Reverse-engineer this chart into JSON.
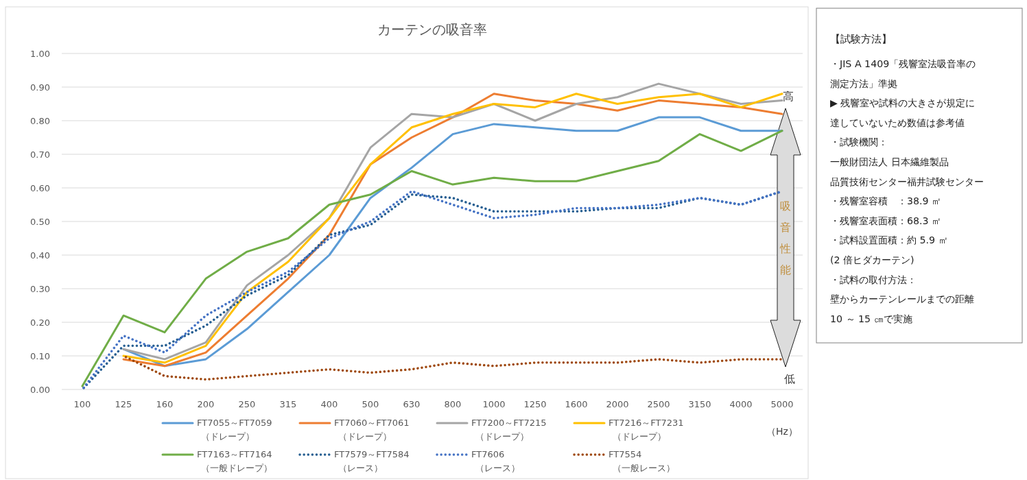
{
  "chart_data": [
    {
      "type": "line",
      "title": "カーテンの吸音率",
      "xlabel": "（Hz）",
      "categories": [
        "100",
        "125",
        "160",
        "200",
        "250",
        "315",
        "400",
        "500",
        "630",
        "800",
        "1000",
        "1250",
        "1600",
        "2000",
        "2500",
        "3150",
        "4000",
        "5000"
      ],
      "ylim": [
        0,
        1
      ],
      "yticks": [
        {
          "value": 0,
          "label": "0.00"
        },
        {
          "value": 0.1,
          "label": "0.10"
        },
        {
          "value": 0.2,
          "label": "0.20"
        },
        {
          "value": 0.3,
          "label": "0.30"
        },
        {
          "value": 0.4,
          "label": "0.40"
        },
        {
          "value": 0.5,
          "label": "0.50"
        },
        {
          "value": 0.6,
          "label": "0.60"
        },
        {
          "value": 0.7,
          "label": "0.70"
        },
        {
          "value": 0.8,
          "label": "0.80"
        },
        {
          "value": 0.9,
          "label": "0.90"
        },
        {
          "value": 1,
          "label": "1.00"
        }
      ],
      "grid": "y",
      "legend": "bottom",
      "annotations": [
        "高",
        "吸音性能",
        "低"
      ],
      "series": [
        {
          "name": "FT7055～FT7059\n（ドレープ）",
          "color": "#5b9bd5",
          "line_style": "solid",
          "values": [
            null,
            0.12,
            0.07,
            0.09,
            0.18,
            0.29,
            0.4,
            0.57,
            0.66,
            0.76,
            0.79,
            0.78,
            0.77,
            0.77,
            0.81,
            0.81,
            0.77,
            0.77
          ]
        },
        {
          "name": "FT7060～FT7061\n（ドレープ）",
          "color": "#ed7d31",
          "line_style": "solid",
          "values": [
            null,
            0.09,
            0.07,
            0.11,
            0.22,
            0.33,
            0.46,
            0.67,
            0.75,
            0.81,
            0.88,
            0.86,
            0.85,
            0.83,
            0.86,
            0.85,
            0.84,
            0.82
          ]
        },
        {
          "name": "FT7200～FT7215\n（ドレープ）",
          "color": "#a5a5a5",
          "line_style": "solid",
          "values": [
            null,
            0.12,
            0.09,
            0.14,
            0.31,
            0.4,
            0.51,
            0.72,
            0.82,
            0.81,
            0.85,
            0.8,
            0.85,
            0.87,
            0.91,
            0.88,
            0.85,
            0.86
          ]
        },
        {
          "name": "FT7216～FT7231\n（ドレープ）",
          "color": "#ffc000",
          "line_style": "solid",
          "values": [
            null,
            0.1,
            0.08,
            0.13,
            0.29,
            0.38,
            0.51,
            0.67,
            0.78,
            0.82,
            0.85,
            0.84,
            0.88,
            0.85,
            0.87,
            0.88,
            0.84,
            0.88
          ]
        },
        {
          "name": "FT7163～FT7164\n（一般ドレープ）",
          "color": "#70ad47",
          "line_style": "solid",
          "values": [
            0.01,
            0.22,
            0.17,
            0.33,
            0.41,
            0.45,
            0.55,
            0.58,
            0.65,
            0.61,
            0.63,
            0.62,
            0.62,
            0.65,
            0.68,
            0.76,
            0.71,
            0.77
          ]
        },
        {
          "name": "FT7579～FT7584\n（レース）",
          "color": "#255e91",
          "line_style": "dotted",
          "values": [
            0.0,
            0.13,
            0.13,
            0.19,
            0.28,
            0.34,
            0.46,
            0.49,
            0.58,
            0.57,
            0.53,
            0.53,
            0.53,
            0.54,
            0.54,
            0.57,
            0.55,
            0.59
          ]
        },
        {
          "name": "FT7606\n（レース）",
          "color": "#4472c4",
          "line_style": "dotted",
          "values": [
            0.0,
            0.16,
            0.11,
            0.22,
            0.29,
            0.35,
            0.45,
            0.5,
            0.59,
            0.55,
            0.51,
            0.52,
            0.54,
            0.54,
            0.55,
            0.57,
            0.55,
            0.59
          ]
        },
        {
          "name": "FT7554\n（一般レース）",
          "color": "#9e480e",
          "line_style": "dotted",
          "values": [
            null,
            0.1,
            0.04,
            0.03,
            0.04,
            0.05,
            0.06,
            0.05,
            0.06,
            0.08,
            0.07,
            0.08,
            0.08,
            0.08,
            0.09,
            0.08,
            0.09,
            0.09
          ]
        }
      ]
    },
    {
      "type": "other",
      "title": "【試験方法】",
      "annotations": [
        "・JIS A 1409「残響室法吸音率の",
        "測定方法」準拠",
        "▶ 残響室や試料の大きさが規定に",
        "達していないため数値は参考値",
        "・試験機関：",
        "一般財団法人 日本繊維製品",
        "品質技術センター福井試験センター",
        "・残響室容積　：38.9 ㎡",
        "・残響室表面積：68.3 ㎡",
        "・試料設置面積：約 5.9 ㎡",
        "(2 倍ヒダカーテン)",
        "・試料の取付方法：",
        "壁からカーテンレールまでの距離",
        "10 ～ 15 ㎝で実施"
      ]
    }
  ]
}
